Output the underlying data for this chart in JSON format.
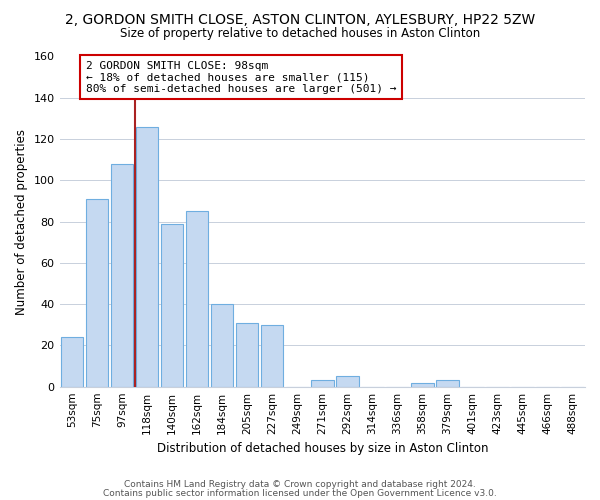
{
  "title": "2, GORDON SMITH CLOSE, ASTON CLINTON, AYLESBURY, HP22 5ZW",
  "subtitle": "Size of property relative to detached houses in Aston Clinton",
  "xlabel": "Distribution of detached houses by size in Aston Clinton",
  "ylabel": "Number of detached properties",
  "bar_labels": [
    "53sqm",
    "75sqm",
    "97sqm",
    "118sqm",
    "140sqm",
    "162sqm",
    "184sqm",
    "205sqm",
    "227sqm",
    "249sqm",
    "271sqm",
    "292sqm",
    "314sqm",
    "336sqm",
    "358sqm",
    "379sqm",
    "401sqm",
    "423sqm",
    "445sqm",
    "466sqm",
    "488sqm"
  ],
  "bar_heights": [
    24,
    91,
    108,
    126,
    79,
    85,
    40,
    31,
    30,
    0,
    3,
    5,
    0,
    0,
    2,
    3,
    0,
    0,
    0,
    0,
    0
  ],
  "bar_color": "#c5d9f1",
  "bar_edge_color": "#6faee0",
  "reference_line_x": 2,
  "reference_line_color": "#aa2222",
  "annotation_text": "2 GORDON SMITH CLOSE: 98sqm\n← 18% of detached houses are smaller (115)\n80% of semi-detached houses are larger (501) →",
  "annotation_box_color": "#ffffff",
  "annotation_box_edge": "#cc0000",
  "ylim": [
    0,
    160
  ],
  "yticks": [
    0,
    20,
    40,
    60,
    80,
    100,
    120,
    140,
    160
  ],
  "footer1": "Contains HM Land Registry data © Crown copyright and database right 2024.",
  "footer2": "Contains public sector information licensed under the Open Government Licence v3.0.",
  "bg_color": "#ffffff",
  "grid_color": "#c8d0dc"
}
